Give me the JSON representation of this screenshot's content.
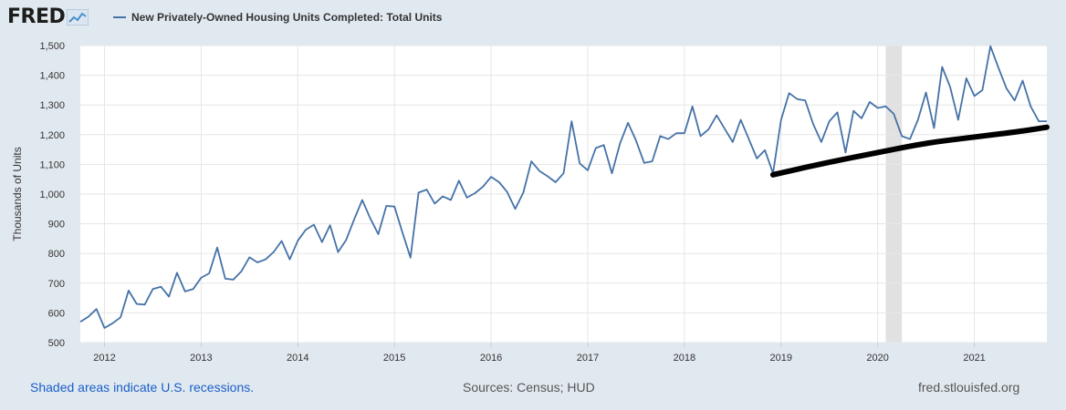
{
  "logo": {
    "text": "FRED",
    "badge_icon": "chart-line-icon"
  },
  "footer": {
    "recessions_note": "Shaded areas indicate U.S. recessions.",
    "sources": "Sources: Census; HUD",
    "site": "fred.stlouisfed.org"
  },
  "colors": {
    "series": "#4572a7",
    "trend": "#000000",
    "recession": "#e1e1e1",
    "background": "#e1e9f0"
  },
  "chart_data": {
    "type": "line",
    "title": "",
    "ylabel": "Thousands of Units",
    "xlabel": "",
    "ylim": [
      500,
      1500
    ],
    "yticks": [
      500,
      600,
      700,
      800,
      900,
      1000,
      1100,
      1200,
      1300,
      1400,
      1500
    ],
    "ytick_labels": [
      "500",
      "600",
      "700",
      "800",
      "900",
      "1,000",
      "1,100",
      "1,200",
      "1,300",
      "1,400",
      "1,500"
    ],
    "xlim": [
      "2011-10",
      "2021-10"
    ],
    "xtick_labels": [
      "2012",
      "2013",
      "2014",
      "2015",
      "2016",
      "2017",
      "2018",
      "2019",
      "2020",
      "2021"
    ],
    "grid": true,
    "legend": "top-left",
    "recessions": [
      {
        "start": "2020-02",
        "end": "2020-04"
      }
    ],
    "series": [
      {
        "name": "New Privately-Owned Housing Units Completed: Total Units",
        "start": "2011-10",
        "frequency": "monthly",
        "values": [
          570,
          587,
          613,
          549,
          565,
          585,
          675,
          630,
          628,
          680,
          688,
          655,
          735,
          672,
          680,
          718,
          733,
          820,
          715,
          712,
          740,
          787,
          770,
          780,
          805,
          842,
          780,
          843,
          880,
          897,
          838,
          895,
          805,
          845,
          915,
          980,
          918,
          865,
          960,
          958,
          870,
          786,
          1005,
          1015,
          968,
          992,
          980,
          1045,
          988,
          1003,
          1025,
          1058,
          1040,
          1007,
          950,
          1005,
          1110,
          1078,
          1060,
          1040,
          1070,
          1245,
          1103,
          1080,
          1155,
          1165,
          1070,
          1170,
          1240,
          1180,
          1105,
          1110,
          1195,
          1185,
          1205,
          1205,
          1295,
          1195,
          1218,
          1265,
          1220,
          1175,
          1250,
          1185,
          1120,
          1148,
          1070,
          1250,
          1340,
          1320,
          1315,
          1235,
          1175,
          1245,
          1275,
          1140,
          1280,
          1255,
          1310,
          1290,
          1295,
          1270,
          1195,
          1185,
          1250,
          1342,
          1222,
          1428,
          1360,
          1250,
          1390,
          1330,
          1350,
          1498,
          1425,
          1355,
          1315,
          1382,
          1295,
          1245,
          1245
        ]
      },
      {
        "name": "",
        "kind": "hand-drawn trend line",
        "x": [
          "2018-12",
          "2019-06",
          "2020-01",
          "2020-07",
          "2021-01",
          "2021-07",
          "2021-10"
        ],
        "values": [
          1065,
          1102,
          1140,
          1172,
          1192,
          1212,
          1225
        ]
      }
    ]
  }
}
